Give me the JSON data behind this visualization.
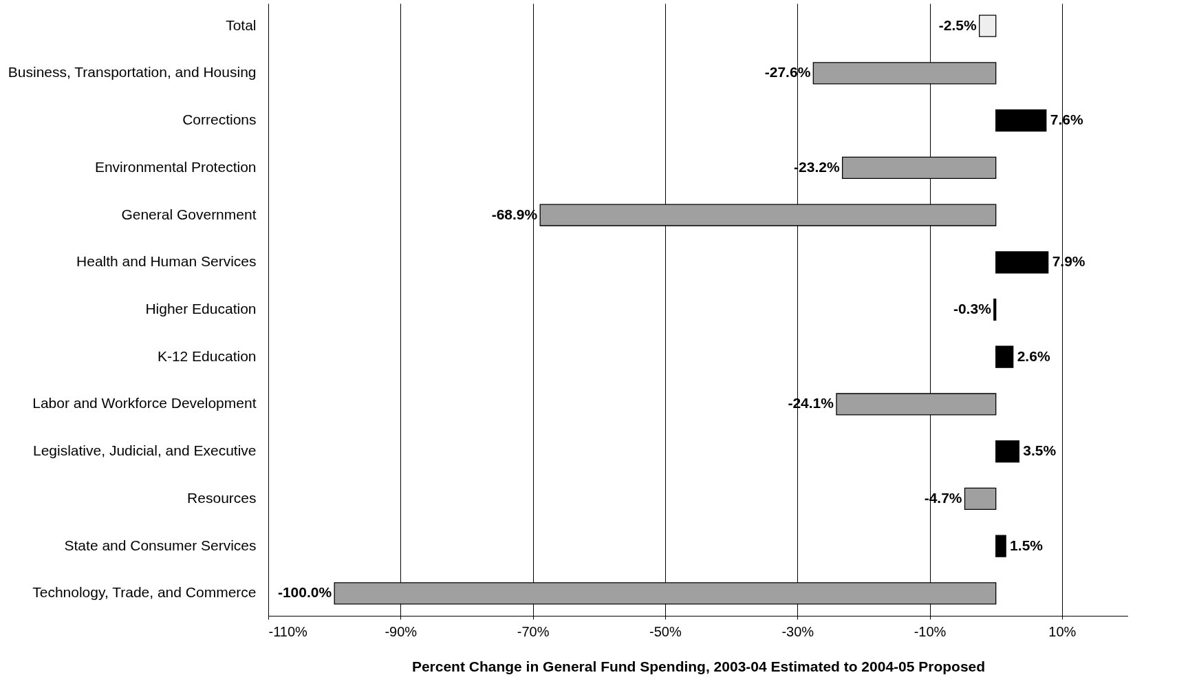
{
  "chart_data": {
    "type": "bar",
    "orientation": "horizontal",
    "xlabel": "Percent Change in General Fund Spending, 2003-04 Estimated to 2004-05 Proposed",
    "categories": [
      "Total",
      "Business, Transportation, and Housing",
      "Corrections",
      "Environmental Protection",
      "General Government",
      "Health and Human Services",
      "Higher Education",
      "K-12 Education",
      "Labor and Workforce Development",
      "Legislative, Judicial, and Executive",
      "Resources",
      "State and Consumer Services",
      "Technology, Trade, and Commerce"
    ],
    "values": [
      -2.5,
      -27.6,
      7.6,
      -23.2,
      -68.9,
      7.9,
      -0.3,
      2.6,
      -24.1,
      3.5,
      -4.7,
      1.5,
      -100.0
    ],
    "colors": [
      "#eeeeee",
      "#a0a0a0",
      "#000000",
      "#a0a0a0",
      "#a0a0a0",
      "#000000",
      "#000000",
      "#000000",
      "#a0a0a0",
      "#000000",
      "#a0a0a0",
      "#000000",
      "#a0a0a0"
    ],
    "value_labels": [
      "-2.5%",
      "-27.6%",
      "7.6%",
      "-23.2%",
      "-68.9%",
      "7.9%",
      "-0.3%",
      "2.6%",
      "-24.1%",
      "3.5%",
      "-4.7%",
      "1.5%",
      "-100.0%"
    ],
    "xlim": [
      -110,
      20
    ],
    "xticks": [
      {
        "value": -110,
        "label": "-110%"
      },
      {
        "value": -90,
        "label": "-90%"
      },
      {
        "value": -70,
        "label": "-70%"
      },
      {
        "value": -50,
        "label": "-50%"
      },
      {
        "value": -30,
        "label": "-30%"
      },
      {
        "value": -10,
        "label": "-10%"
      },
      {
        "value": 10,
        "label": "10%"
      }
    ],
    "grid": "x"
  }
}
